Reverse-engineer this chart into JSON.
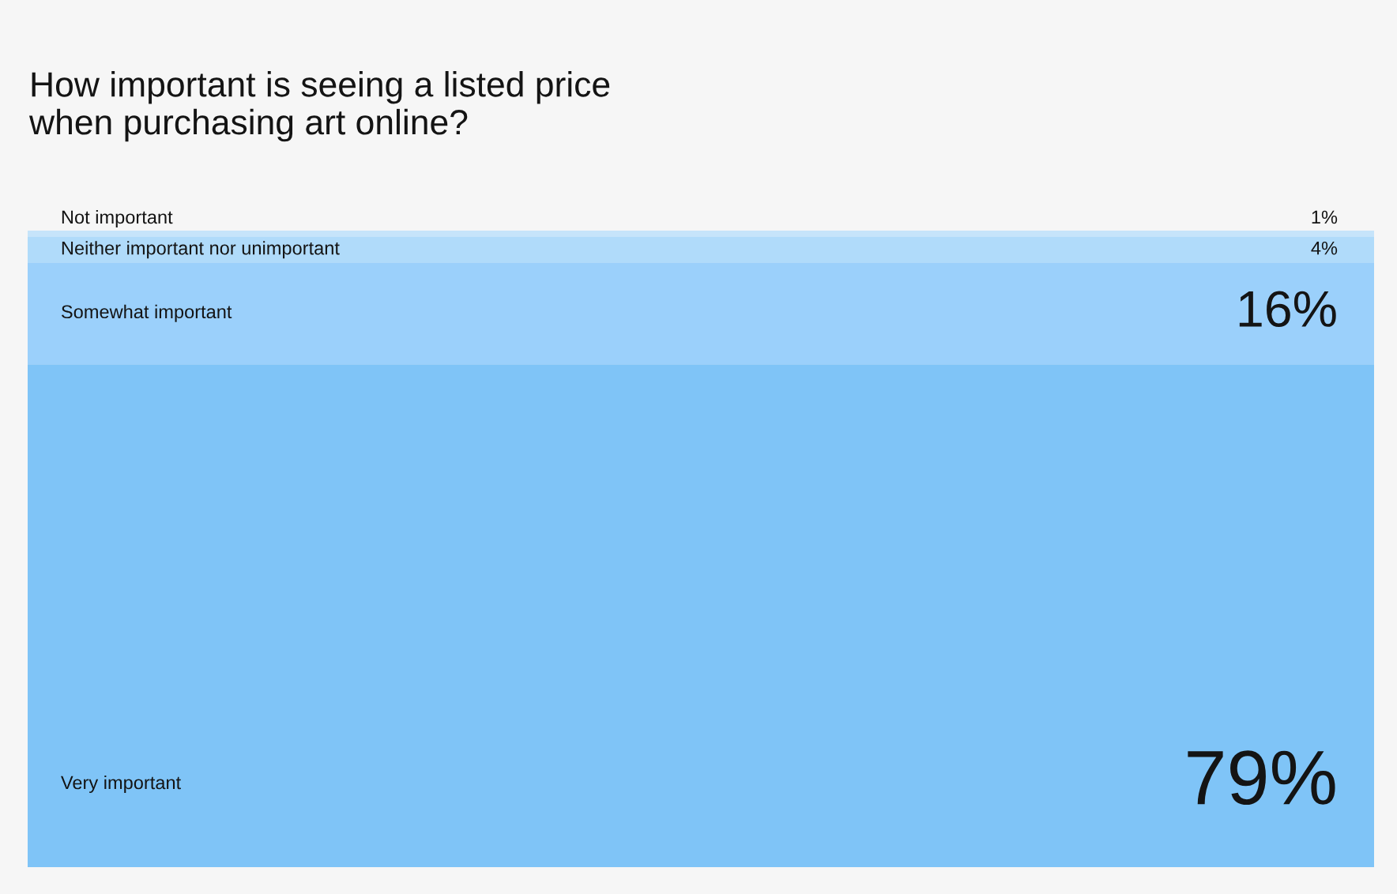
{
  "chart_data": {
    "type": "bar",
    "title": "How important is seeing a listed price when purchasing art online?",
    "categories": [
      null
    ],
    "stacked": true,
    "ylim": [
      0,
      100
    ],
    "series": [
      {
        "name": "Very important",
        "color": "#7fc4f7",
        "values": [
          79
        ],
        "value_labels": [
          "79%"
        ]
      },
      {
        "name": "Somewhat important",
        "color": "#9bd0fb",
        "values": [
          16
        ],
        "value_labels": [
          "16%"
        ]
      },
      {
        "name": "Neither important nor unimportant",
        "color": "#b0dbfa",
        "values": [
          4
        ],
        "value_labels": [
          "4%"
        ]
      },
      {
        "name": "Not important",
        "color": "#c6e4fa",
        "values": [
          1
        ],
        "value_labels": [
          "1%"
        ]
      }
    ]
  }
}
